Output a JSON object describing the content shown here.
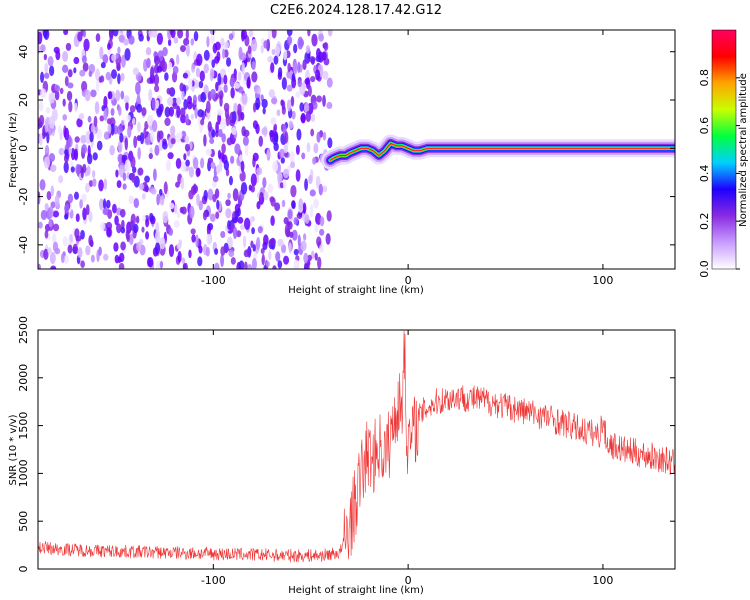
{
  "figure": {
    "title": "C2E6.2024.128.17.42.G12"
  },
  "chart_data": [
    {
      "type": "heatmap",
      "title": "C2E6.2024.128.17.42.G12",
      "xlabel": "Height of straight line (km)",
      "ylabel": "Frequency (Hz)",
      "xlim": [
        -190,
        137
      ],
      "ylim": [
        -50,
        49
      ],
      "xticks": [
        -100,
        0,
        100
      ],
      "xtick_labels": [
        "-100",
        "0",
        "100"
      ],
      "yticks": [
        -40,
        -20,
        0,
        20,
        40
      ],
      "ytick_labels": [
        "-40",
        "-20",
        "0",
        "20",
        "40"
      ],
      "noise_region_x": [
        -190,
        -40
      ],
      "signal_track": {
        "x": [
          -40,
          -38,
          -35,
          -32,
          -30,
          -27,
          -24,
          -21,
          -18,
          -15,
          -12,
          -9,
          -6,
          -3,
          0,
          3,
          6,
          10,
          20,
          40,
          60,
          80,
          95,
          110,
          137
        ],
        "frequency": [
          -5,
          -4,
          -3,
          -3,
          -2,
          -1,
          0,
          0,
          -1,
          -3,
          -1,
          2,
          1,
          1,
          0,
          -1,
          -1,
          0,
          0,
          0,
          0,
          0,
          0,
          0,
          0
        ]
      },
      "colorbar": {
        "label": "Normalized spectral amplitude",
        "range": [
          0.0,
          1.0
        ],
        "ticks": [
          0.0,
          0.2,
          0.4,
          0.6,
          0.8
        ],
        "tick_labels": [
          "0.0",
          "0.2",
          "0.4",
          "0.6",
          "0.8"
        ],
        "colors": [
          "#ffffff",
          "#c89cff",
          "#8a2be2",
          "#1e00ff",
          "#00d0ff",
          "#00ff40",
          "#c8ff00",
          "#ffa500",
          "#ff0000",
          "#ff0060"
        ]
      }
    },
    {
      "type": "line",
      "xlabel": "Height of straight line (km)",
      "ylabel": "SNR (10 * v/v)",
      "xlim": [
        -190,
        137
      ],
      "ylim": [
        0,
        2500
      ],
      "xticks": [
        -100,
        0,
        100
      ],
      "xtick_labels": [
        "-100",
        "0",
        "100"
      ],
      "yticks": [
        0,
        500,
        1000,
        1500,
        2000,
        2500
      ],
      "ytick_labels": [
        "0",
        "500",
        "1000",
        "1500",
        "2000",
        "2500"
      ],
      "color": "#ee3333",
      "series": [
        {
          "x": [
            -190,
            -180,
            -160,
            -140,
            -120,
            -100,
            -80,
            -60,
            -45,
            -35,
            -30,
            -27,
            -24,
            -21,
            -18,
            -15,
            -12,
            -9,
            -6,
            -3,
            -2,
            -1,
            0,
            3,
            6,
            10,
            15,
            20,
            25,
            30,
            40,
            50,
            60,
            70,
            80,
            90,
            98,
            100,
            102,
            110,
            120,
            130,
            137
          ],
          "y": [
            230,
            210,
            190,
            180,
            170,
            160,
            150,
            140,
            140,
            170,
            450,
            700,
            1000,
            1200,
            1150,
            1300,
            1200,
            1350,
            1700,
            1700,
            2500,
            1500,
            1300,
            1450,
            1600,
            1700,
            1750,
            1780,
            1800,
            1790,
            1760,
            1700,
            1650,
            1600,
            1520,
            1450,
            1400,
            1550,
            1320,
            1250,
            1200,
            1150,
            1100
          ]
        }
      ]
    }
  ]
}
